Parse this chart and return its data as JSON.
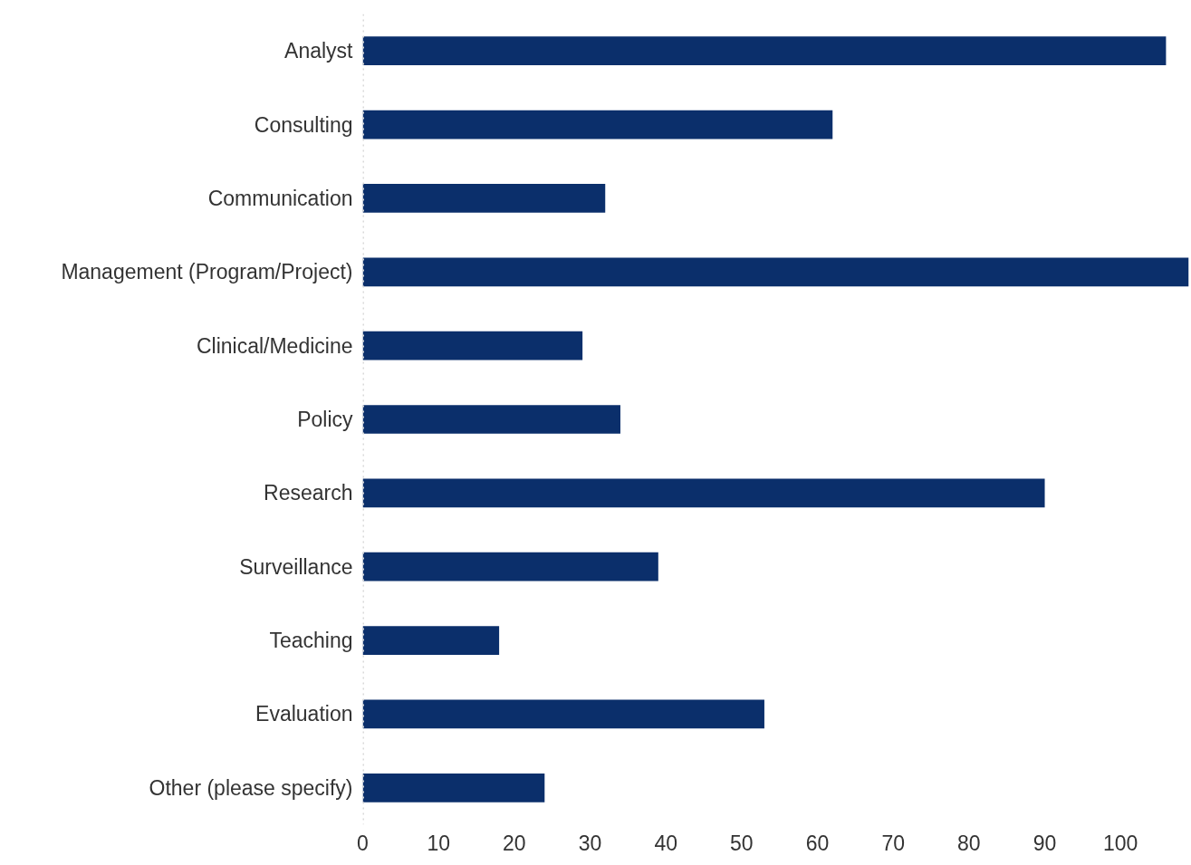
{
  "chart_data": {
    "type": "bar",
    "orientation": "horizontal",
    "categories": [
      "Analyst",
      "Consulting",
      "Communication",
      "Management (Program/Project)",
      "Clinical/Medicine",
      "Policy",
      "Research",
      "Surveillance",
      "Teaching",
      "Evaluation",
      "Other (please specify)"
    ],
    "values": [
      106,
      62,
      32,
      109,
      29,
      34,
      90,
      39,
      18,
      53,
      24
    ],
    "color": "#0b2f6b",
    "xlim": [
      0,
      109
    ],
    "xticks": [
      0,
      10,
      20,
      30,
      40,
      50,
      60,
      70,
      80,
      90,
      100
    ],
    "grid": false,
    "ref_lines": [
      {
        "axis": "x",
        "value": 0,
        "color": "#d9d9d9",
        "line_style": "dotted"
      }
    ]
  }
}
